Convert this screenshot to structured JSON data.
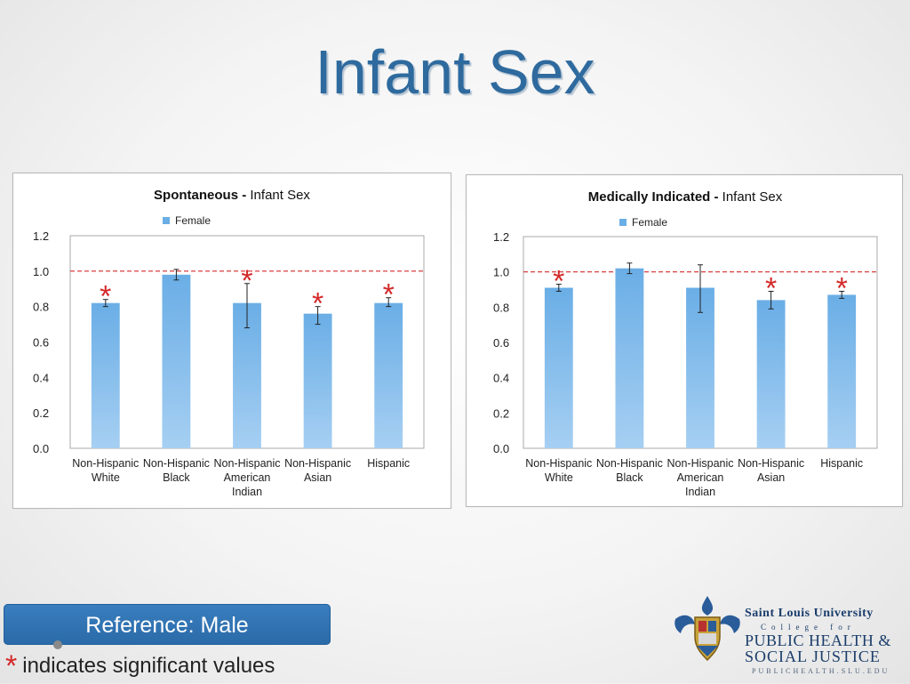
{
  "slide": {
    "title": "Infant Sex",
    "reference_label": "Reference: Male",
    "footnote_star": "*",
    "footnote_text": "indicates significant values"
  },
  "logo": {
    "line1": "Saint Louis University",
    "line2": "College for",
    "line3": "PUBLIC HEALTH &",
    "line4": "SOCIAL JUSTICE",
    "line5": "PUBLICHEALTH.SLU.EDU",
    "crest_icon": "university-crest-icon"
  },
  "colors": {
    "bar": "#6aaee6",
    "bar_light": "#a6cff2",
    "reference_line": "#d42a2a",
    "significance": "#d42a2a",
    "title_blue": "#2e6a9e"
  },
  "chart_data": [
    {
      "type": "bar",
      "title_bold": "Spontaneous - ",
      "title_rest": "Infant Sex",
      "legend": [
        {
          "name": "Female",
          "placement": "top"
        }
      ],
      "categories": [
        [
          "Non-Hispanic",
          "White"
        ],
        [
          "Non-Hispanic",
          "Black"
        ],
        [
          "Non-Hispanic",
          "American",
          "Indian"
        ],
        [
          "Non-Hispanic",
          "Asian"
        ],
        [
          "Hispanic"
        ]
      ],
      "series": [
        {
          "name": "Female",
          "values": [
            0.82,
            0.98,
            0.82,
            0.76,
            0.82
          ],
          "err_low": [
            0.8,
            0.95,
            0.68,
            0.7,
            0.8
          ],
          "err_high": [
            0.84,
            1.01,
            0.93,
            0.8,
            0.85
          ]
        }
      ],
      "significant": [
        true,
        false,
        true,
        true,
        true
      ],
      "reference_line": 1.0,
      "ylim": [
        0,
        1.2
      ],
      "yticks": [
        "0.0",
        "0.2",
        "0.4",
        "0.6",
        "0.8",
        "1.0",
        "1.2"
      ],
      "grid": false
    },
    {
      "type": "bar",
      "title_bold": "Medically Indicated - ",
      "title_rest": "Infant Sex",
      "legend": [
        {
          "name": "Female",
          "placement": "top"
        }
      ],
      "categories": [
        [
          "Non-Hispanic",
          "White"
        ],
        [
          "Non-Hispanic",
          "Black"
        ],
        [
          "Non-Hispanic",
          "American",
          "Indian"
        ],
        [
          "Non-Hispanic",
          "Asian"
        ],
        [
          "Hispanic"
        ]
      ],
      "series": [
        {
          "name": "Female",
          "values": [
            0.91,
            1.02,
            0.91,
            0.84,
            0.87
          ],
          "err_low": [
            0.89,
            0.99,
            0.77,
            0.79,
            0.85
          ],
          "err_high": [
            0.93,
            1.05,
            1.04,
            0.89,
            0.89
          ]
        }
      ],
      "significant": [
        true,
        false,
        false,
        true,
        true
      ],
      "reference_line": 1.0,
      "ylim": [
        0,
        1.2
      ],
      "yticks": [
        "0.0",
        "0.2",
        "0.4",
        "0.6",
        "0.8",
        "1.0",
        "1.2"
      ],
      "grid": false
    }
  ]
}
